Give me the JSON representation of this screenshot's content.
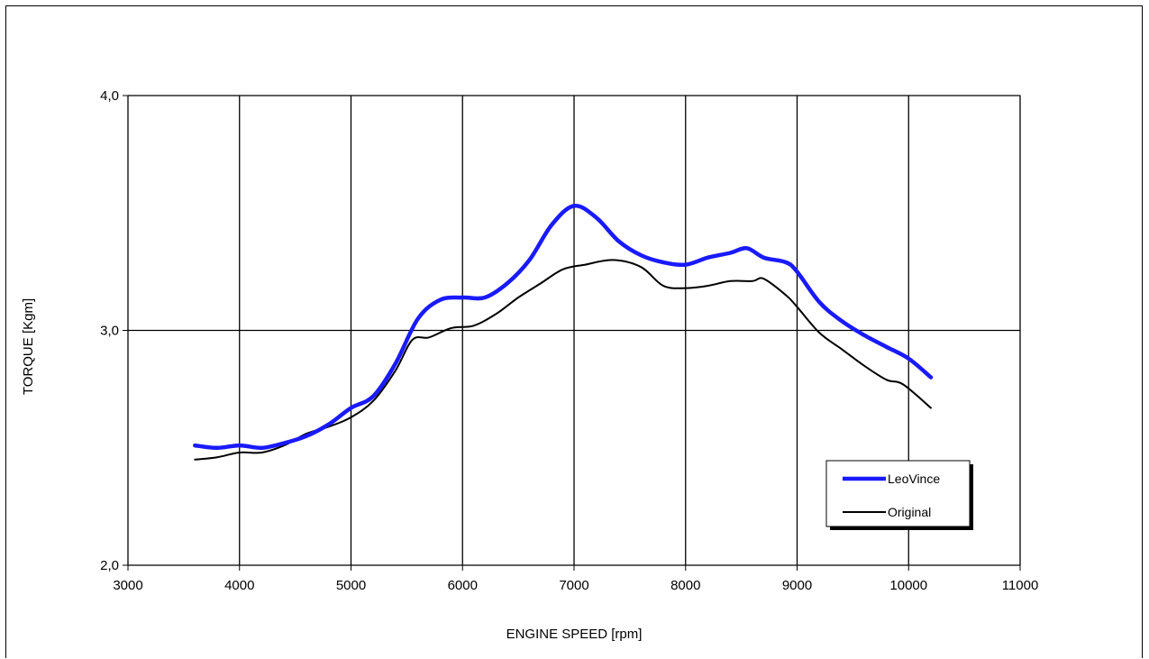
{
  "chart_data": {
    "type": "line",
    "title": "",
    "xlabel": "ENGINE SPEED [rpm]",
    "ylabel": "TORQUE [Kgm]",
    "xlim": [
      3000,
      11000
    ],
    "ylim": [
      2.0,
      4.0
    ],
    "x_ticks": [
      3000,
      4000,
      5000,
      6000,
      7000,
      8000,
      9000,
      10000,
      11000
    ],
    "x_tick_labels": [
      "3000",
      "4000",
      "5000",
      "6000",
      "7000",
      "8000",
      "9000",
      "10000",
      "11000"
    ],
    "y_ticks": [
      2.0,
      3.0,
      4.0
    ],
    "y_tick_labels": [
      "2,0",
      "3,0",
      "4,0"
    ],
    "grid": true,
    "legend_position": "bottom-right",
    "series": [
      {
        "name": "LeoVince",
        "color": "#1a1aff",
        "x": [
          3600,
          3800,
          4000,
          4200,
          4400,
          4600,
          4800,
          5000,
          5200,
          5400,
          5600,
          5800,
          6000,
          6200,
          6400,
          6600,
          6800,
          7000,
          7200,
          7400,
          7600,
          7800,
          8000,
          8200,
          8400,
          8550,
          8700,
          8900,
          9000,
          9200,
          9400,
          9600,
          9800,
          10000,
          10200
        ],
        "y": [
          2.51,
          2.5,
          2.51,
          2.5,
          2.52,
          2.55,
          2.6,
          2.67,
          2.72,
          2.86,
          3.05,
          3.13,
          3.14,
          3.14,
          3.2,
          3.3,
          3.45,
          3.53,
          3.48,
          3.38,
          3.32,
          3.29,
          3.28,
          3.31,
          3.33,
          3.35,
          3.31,
          3.29,
          3.25,
          3.12,
          3.04,
          2.98,
          2.93,
          2.88,
          2.8
        ]
      },
      {
        "name": "Original",
        "color": "#000000",
        "x": [
          3600,
          3800,
          4000,
          4200,
          4400,
          4600,
          4800,
          5000,
          5200,
          5400,
          5550,
          5700,
          5900,
          6100,
          6300,
          6500,
          6700,
          6900,
          7100,
          7350,
          7600,
          7800,
          8000,
          8200,
          8400,
          8600,
          8700,
          8900,
          9000,
          9200,
          9400,
          9600,
          9800,
          9950,
          10200
        ],
        "y": [
          2.45,
          2.46,
          2.48,
          2.48,
          2.51,
          2.56,
          2.59,
          2.63,
          2.7,
          2.83,
          2.96,
          2.97,
          3.01,
          3.02,
          3.07,
          3.14,
          3.2,
          3.26,
          3.28,
          3.3,
          3.27,
          3.19,
          3.18,
          3.19,
          3.21,
          3.21,
          3.22,
          3.15,
          3.1,
          2.99,
          2.92,
          2.85,
          2.79,
          2.77,
          2.67
        ]
      }
    ]
  }
}
